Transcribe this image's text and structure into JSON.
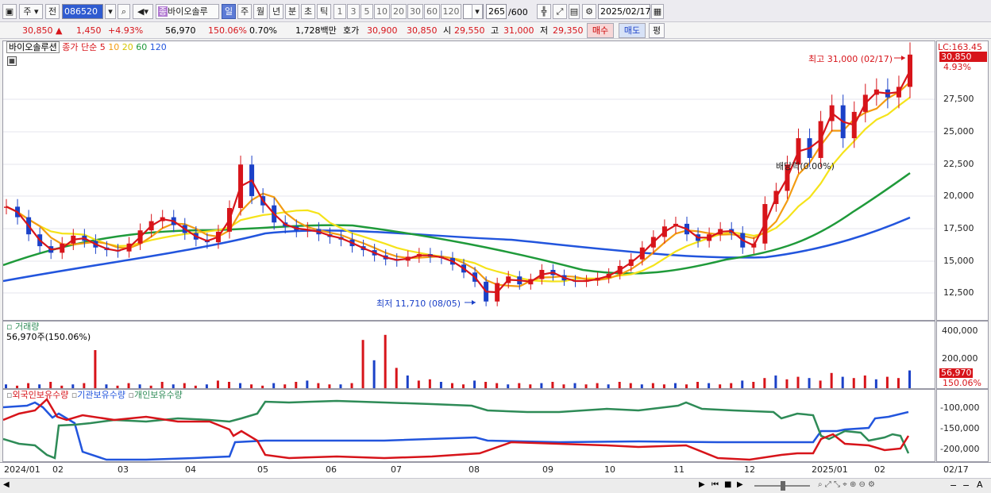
{
  "toolbar": {
    "market": "주",
    "mode": "전",
    "code": "086520",
    "name": "바이오솔루",
    "periods": [
      "일",
      "주",
      "월",
      "년",
      "분",
      "초",
      "틱"
    ],
    "selected_period": "일",
    "intervals": [
      "1",
      "3",
      "5",
      "10",
      "20",
      "30",
      "60",
      "120"
    ],
    "count": "265",
    "count_total": "/600",
    "date": "2025/02/17"
  },
  "quote": {
    "price": "30,850",
    "change": "1,450",
    "change_pct": "+4.93%",
    "volume": "56,970",
    "volume_pct": "150.06%",
    "turnover_pct": "0.70%",
    "amount": "1,728백만",
    "ask_label": "호가",
    "ask": "30,900",
    "bid": "30,850",
    "open_label": "시",
    "open": "29,550",
    "high_label": "고",
    "high": "31,000",
    "low_label": "저",
    "low": "29,350",
    "buy": "매수",
    "sell": "매도",
    "eval": "평"
  },
  "price_legend": {
    "name": "바이오솔루션",
    "ma_label": "종가 단순",
    "ma": [
      "5",
      "10",
      "20",
      "60",
      "120"
    ],
    "ma_colors": [
      "#d7141a",
      "#f39c12",
      "#f5e31a",
      "#1f9a3a",
      "#2255dd"
    ]
  },
  "price_axis": {
    "top_label": "LC:163.45",
    "current": "30,850",
    "current_pct": "4.93%",
    "ticks": [
      "27,500",
      "25,000",
      "22,500",
      "20,000",
      "17,500",
      "15,000",
      "12,500"
    ]
  },
  "annotations": {
    "high": "최고 31,000 (02/17)",
    "low": "최저 11,710 (08/05)",
    "dividend": "배당락(0.00%)"
  },
  "volume_pane": {
    "title": "거래량",
    "value": "56,970주(150.06%)",
    "ticks": [
      "400,000",
      "200,000"
    ],
    "current": "56,970",
    "current_pct": "150.06%"
  },
  "holdings_pane": {
    "series": [
      "외국인보유수량",
      "기관보유수량",
      "개인보유수량"
    ],
    "colors": [
      "#d7141a",
      "#2255dd",
      "#2e8b57"
    ],
    "ticks": [
      "-100,000",
      "-150,000",
      "-200,000"
    ]
  },
  "x_axis": [
    "2024/01",
    "02",
    "03",
    "04",
    "05",
    "06",
    "07",
    "08",
    "09",
    "10",
    "11",
    "12",
    "2025/01",
    "02"
  ],
  "x_axis_right": "02/17",
  "chart_data": {
    "type": "line",
    "ylim": [
      11000,
      31500
    ],
    "close": [
      19300,
      18500,
      17200,
      16300,
      15800,
      16500,
      17100,
      16700,
      16200,
      16000,
      15900,
      16500,
      17500,
      18200,
      18500,
      17900,
      17300,
      16800,
      16600,
      17400,
      19200,
      22500,
      20100,
      19400,
      18100,
      17800,
      17500,
      17600,
      17200,
      17000,
      16800,
      16300,
      16000,
      15600,
      15300,
      15200,
      15500,
      15700,
      15500,
      15400,
      14900,
      14300,
      13600,
      12100,
      13500,
      14000,
      13400,
      13800,
      14500,
      14100,
      13700,
      13600,
      13700,
      13900,
      14200,
      14800,
      15300,
      16200,
      17000,
      17800,
      18000,
      17200,
      16700,
      17200,
      17600,
      17300,
      16200,
      16500,
      19500,
      20500,
      22500,
      24500,
      23000,
      25800,
      27000,
      24500,
      26500,
      27800,
      28200,
      27600,
      28400,
      30850
    ],
    "ma": {
      "5": "derived",
      "20": "derived"
    }
  }
}
